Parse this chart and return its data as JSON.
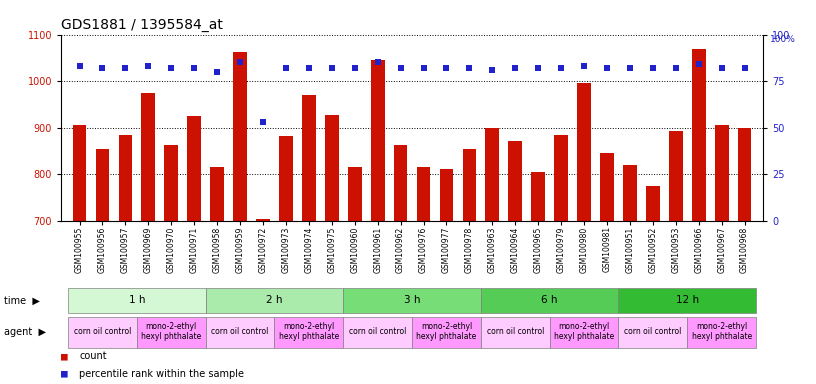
{
  "title": "GDS1881 / 1395584_at",
  "samples": [
    "GSM100955",
    "GSM100956",
    "GSM100957",
    "GSM100969",
    "GSM100970",
    "GSM100971",
    "GSM100958",
    "GSM100959",
    "GSM100972",
    "GSM100973",
    "GSM100974",
    "GSM100975",
    "GSM100960",
    "GSM100961",
    "GSM100962",
    "GSM100976",
    "GSM100977",
    "GSM100978",
    "GSM100963",
    "GSM100964",
    "GSM100965",
    "GSM100979",
    "GSM100980",
    "GSM100981",
    "GSM100951",
    "GSM100952",
    "GSM100953",
    "GSM100966",
    "GSM100967",
    "GSM100968"
  ],
  "counts": [
    905,
    855,
    885,
    975,
    862,
    925,
    815,
    1062,
    703,
    882,
    970,
    928,
    815,
    1045,
    862,
    815,
    812,
    855,
    900,
    872,
    805,
    885,
    995,
    845,
    820,
    775,
    893,
    1070,
    905,
    900
  ],
  "percentile_ranks": [
    83,
    82,
    82,
    83,
    82,
    82,
    80,
    85,
    53,
    82,
    82,
    82,
    82,
    85,
    82,
    82,
    82,
    82,
    81,
    82,
    82,
    82,
    83,
    82,
    82,
    82,
    82,
    84,
    82,
    82
  ],
  "time_groups": [
    {
      "label": "1 h",
      "start": 0,
      "end": 6,
      "color": "#d4f7d4"
    },
    {
      "label": "2 h",
      "start": 6,
      "end": 12,
      "color": "#aaeaaa"
    },
    {
      "label": "3 h",
      "start": 12,
      "end": 18,
      "color": "#77dd77"
    },
    {
      "label": "6 h",
      "start": 18,
      "end": 24,
      "color": "#55cc55"
    },
    {
      "label": "12 h",
      "start": 24,
      "end": 30,
      "color": "#33bb33"
    }
  ],
  "agent_groups": [
    {
      "label": "corn oil control",
      "start": 0,
      "end": 3,
      "color": "#ffccff"
    },
    {
      "label": "mono-2-ethyl\nhexyl phthalate",
      "start": 3,
      "end": 6,
      "color": "#ff99ff"
    },
    {
      "label": "corn oil control",
      "start": 6,
      "end": 9,
      "color": "#ffccff"
    },
    {
      "label": "mono-2-ethyl\nhexyl phthalate",
      "start": 9,
      "end": 12,
      "color": "#ff99ff"
    },
    {
      "label": "corn oil control",
      "start": 12,
      "end": 15,
      "color": "#ffccff"
    },
    {
      "label": "mono-2-ethyl\nhexyl phthalate",
      "start": 15,
      "end": 18,
      "color": "#ff99ff"
    },
    {
      "label": "corn oil control",
      "start": 18,
      "end": 21,
      "color": "#ffccff"
    },
    {
      "label": "mono-2-ethyl\nhexyl phthalate",
      "start": 21,
      "end": 24,
      "color": "#ff99ff"
    },
    {
      "label": "corn oil control",
      "start": 24,
      "end": 27,
      "color": "#ffccff"
    },
    {
      "label": "mono-2-ethyl\nhexyl phthalate",
      "start": 27,
      "end": 30,
      "color": "#ff99ff"
    }
  ],
  "bar_color": "#cc1100",
  "dot_color": "#2222cc",
  "ylim_left": [
    700,
    1100
  ],
  "ylim_right": [
    0,
    100
  ],
  "yticks_left": [
    700,
    800,
    900,
    1000,
    1100
  ],
  "yticks_right": [
    0,
    25,
    50,
    75,
    100
  ],
  "bg_color": "#ffffff",
  "grid_color": "#000000",
  "title_fontsize": 10
}
